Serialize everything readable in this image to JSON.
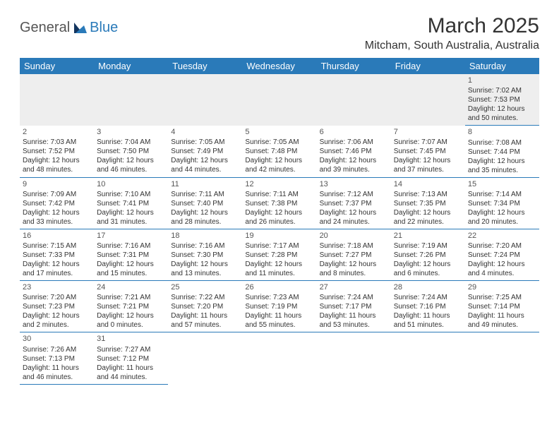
{
  "brand": {
    "part1": "General",
    "part2": "Blue"
  },
  "title": "March 2025",
  "location": "Mitcham, South Australia, Australia",
  "colors": {
    "header_bg": "#2a7ab9",
    "rule": "#2a7ab9",
    "firstrow_bg": "#eeeeee"
  },
  "daynames": [
    "Sunday",
    "Monday",
    "Tuesday",
    "Wednesday",
    "Thursday",
    "Friday",
    "Saturday"
  ],
  "weeks": [
    [
      null,
      null,
      null,
      null,
      null,
      null,
      {
        "n": "1",
        "sr": "Sunrise: 7:02 AM",
        "ss": "Sunset: 7:53 PM",
        "dl": "Daylight: 12 hours and 50 minutes."
      }
    ],
    [
      {
        "n": "2",
        "sr": "Sunrise: 7:03 AM",
        "ss": "Sunset: 7:52 PM",
        "dl": "Daylight: 12 hours and 48 minutes."
      },
      {
        "n": "3",
        "sr": "Sunrise: 7:04 AM",
        "ss": "Sunset: 7:50 PM",
        "dl": "Daylight: 12 hours and 46 minutes."
      },
      {
        "n": "4",
        "sr": "Sunrise: 7:05 AM",
        "ss": "Sunset: 7:49 PM",
        "dl": "Daylight: 12 hours and 44 minutes."
      },
      {
        "n": "5",
        "sr": "Sunrise: 7:05 AM",
        "ss": "Sunset: 7:48 PM",
        "dl": "Daylight: 12 hours and 42 minutes."
      },
      {
        "n": "6",
        "sr": "Sunrise: 7:06 AM",
        "ss": "Sunset: 7:46 PM",
        "dl": "Daylight: 12 hours and 39 minutes."
      },
      {
        "n": "7",
        "sr": "Sunrise: 7:07 AM",
        "ss": "Sunset: 7:45 PM",
        "dl": "Daylight: 12 hours and 37 minutes."
      },
      {
        "n": "8",
        "sr": "Sunrise: 7:08 AM",
        "ss": "Sunset: 7:44 PM",
        "dl": "Daylight: 12 hours and 35 minutes."
      }
    ],
    [
      {
        "n": "9",
        "sr": "Sunrise: 7:09 AM",
        "ss": "Sunset: 7:42 PM",
        "dl": "Daylight: 12 hours and 33 minutes."
      },
      {
        "n": "10",
        "sr": "Sunrise: 7:10 AM",
        "ss": "Sunset: 7:41 PM",
        "dl": "Daylight: 12 hours and 31 minutes."
      },
      {
        "n": "11",
        "sr": "Sunrise: 7:11 AM",
        "ss": "Sunset: 7:40 PM",
        "dl": "Daylight: 12 hours and 28 minutes."
      },
      {
        "n": "12",
        "sr": "Sunrise: 7:11 AM",
        "ss": "Sunset: 7:38 PM",
        "dl": "Daylight: 12 hours and 26 minutes."
      },
      {
        "n": "13",
        "sr": "Sunrise: 7:12 AM",
        "ss": "Sunset: 7:37 PM",
        "dl": "Daylight: 12 hours and 24 minutes."
      },
      {
        "n": "14",
        "sr": "Sunrise: 7:13 AM",
        "ss": "Sunset: 7:35 PM",
        "dl": "Daylight: 12 hours and 22 minutes."
      },
      {
        "n": "15",
        "sr": "Sunrise: 7:14 AM",
        "ss": "Sunset: 7:34 PM",
        "dl": "Daylight: 12 hours and 20 minutes."
      }
    ],
    [
      {
        "n": "16",
        "sr": "Sunrise: 7:15 AM",
        "ss": "Sunset: 7:33 PM",
        "dl": "Daylight: 12 hours and 17 minutes."
      },
      {
        "n": "17",
        "sr": "Sunrise: 7:16 AM",
        "ss": "Sunset: 7:31 PM",
        "dl": "Daylight: 12 hours and 15 minutes."
      },
      {
        "n": "18",
        "sr": "Sunrise: 7:16 AM",
        "ss": "Sunset: 7:30 PM",
        "dl": "Daylight: 12 hours and 13 minutes."
      },
      {
        "n": "19",
        "sr": "Sunrise: 7:17 AM",
        "ss": "Sunset: 7:28 PM",
        "dl": "Daylight: 12 hours and 11 minutes."
      },
      {
        "n": "20",
        "sr": "Sunrise: 7:18 AM",
        "ss": "Sunset: 7:27 PM",
        "dl": "Daylight: 12 hours and 8 minutes."
      },
      {
        "n": "21",
        "sr": "Sunrise: 7:19 AM",
        "ss": "Sunset: 7:26 PM",
        "dl": "Daylight: 12 hours and 6 minutes."
      },
      {
        "n": "22",
        "sr": "Sunrise: 7:20 AM",
        "ss": "Sunset: 7:24 PM",
        "dl": "Daylight: 12 hours and 4 minutes."
      }
    ],
    [
      {
        "n": "23",
        "sr": "Sunrise: 7:20 AM",
        "ss": "Sunset: 7:23 PM",
        "dl": "Daylight: 12 hours and 2 minutes."
      },
      {
        "n": "24",
        "sr": "Sunrise: 7:21 AM",
        "ss": "Sunset: 7:21 PM",
        "dl": "Daylight: 12 hours and 0 minutes."
      },
      {
        "n": "25",
        "sr": "Sunrise: 7:22 AM",
        "ss": "Sunset: 7:20 PM",
        "dl": "Daylight: 11 hours and 57 minutes."
      },
      {
        "n": "26",
        "sr": "Sunrise: 7:23 AM",
        "ss": "Sunset: 7:19 PM",
        "dl": "Daylight: 11 hours and 55 minutes."
      },
      {
        "n": "27",
        "sr": "Sunrise: 7:24 AM",
        "ss": "Sunset: 7:17 PM",
        "dl": "Daylight: 11 hours and 53 minutes."
      },
      {
        "n": "28",
        "sr": "Sunrise: 7:24 AM",
        "ss": "Sunset: 7:16 PM",
        "dl": "Daylight: 11 hours and 51 minutes."
      },
      {
        "n": "29",
        "sr": "Sunrise: 7:25 AM",
        "ss": "Sunset: 7:14 PM",
        "dl": "Daylight: 11 hours and 49 minutes."
      }
    ],
    [
      {
        "n": "30",
        "sr": "Sunrise: 7:26 AM",
        "ss": "Sunset: 7:13 PM",
        "dl": "Daylight: 11 hours and 46 minutes."
      },
      {
        "n": "31",
        "sr": "Sunrise: 7:27 AM",
        "ss": "Sunset: 7:12 PM",
        "dl": "Daylight: 11 hours and 44 minutes."
      },
      null,
      null,
      null,
      null,
      null
    ]
  ]
}
